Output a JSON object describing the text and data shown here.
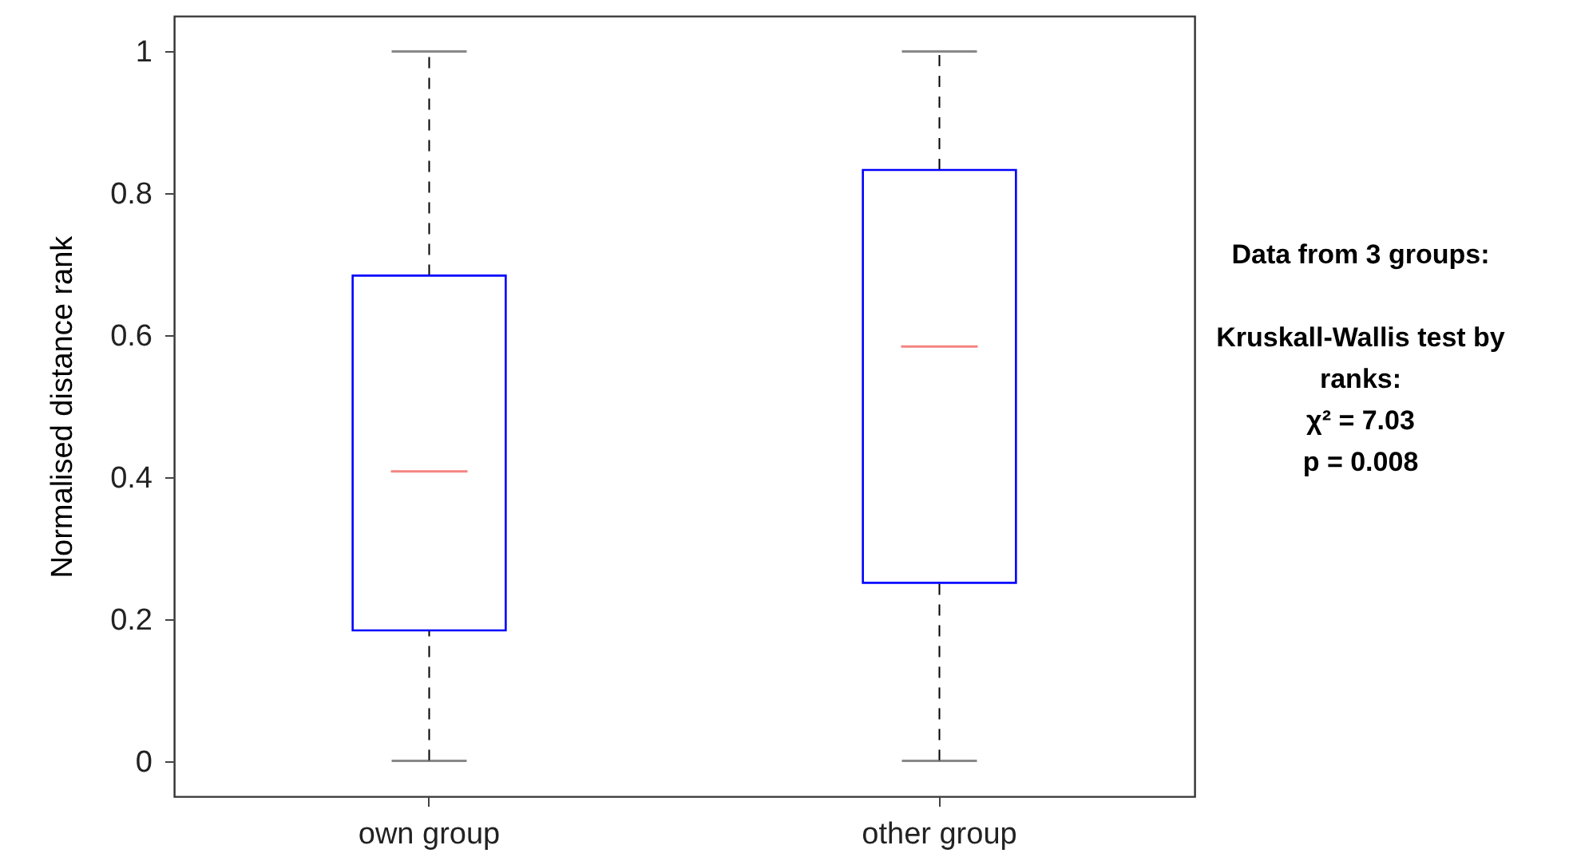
{
  "chart_data": {
    "type": "box",
    "categories": [
      "own group",
      "other group"
    ],
    "ylabel": "Normalised distance rank",
    "ylim": [
      -0.05,
      1.05
    ],
    "yticks": [
      0,
      0.2,
      0.4,
      0.6,
      0.8,
      1
    ],
    "series": [
      {
        "color": "#0000ff",
        "boxes": [
          {
            "low": 0,
            "q1": 0.184,
            "median": 0.408,
            "q3": 0.684,
            "high": 1
          },
          {
            "low": 0,
            "q1": 0.251,
            "median": 0.584,
            "q3": 0.833,
            "high": 1
          }
        ]
      }
    ],
    "annotations": [
      "Data from 3 groups:",
      "Kruskall-Wallis test by ranks:",
      "χ² = 7.03",
      "p = 0.008"
    ]
  }
}
